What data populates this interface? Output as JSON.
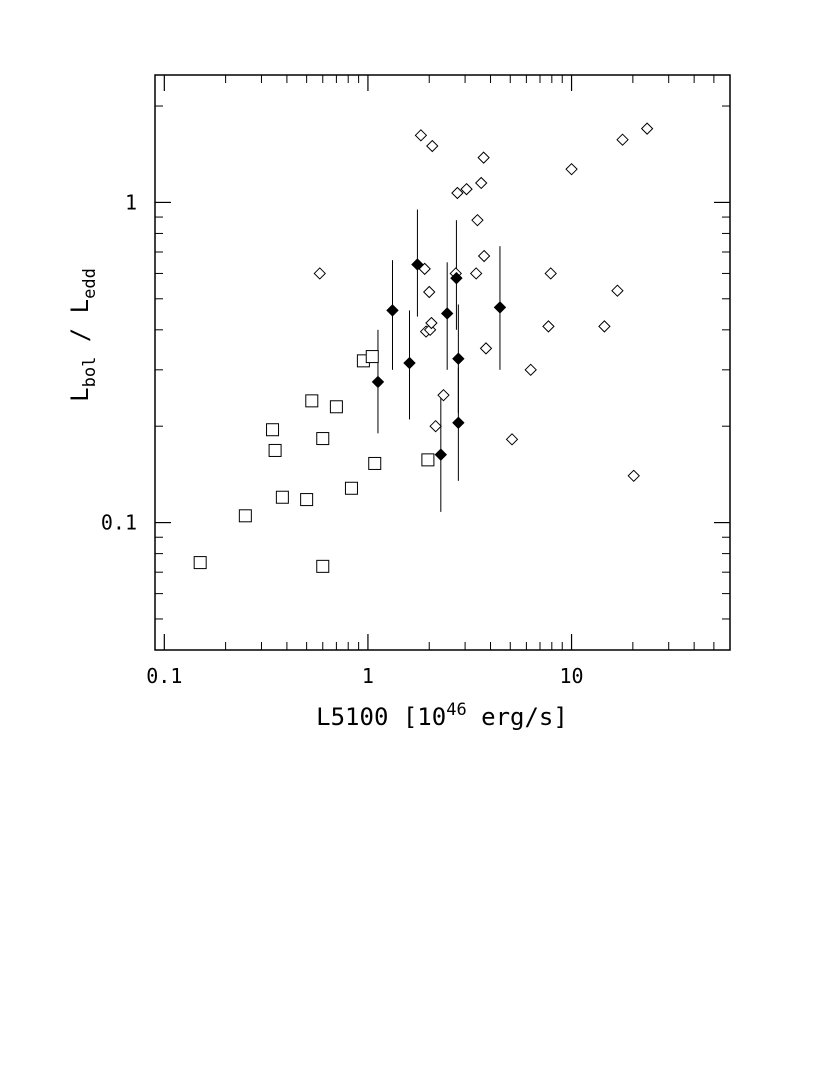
{
  "chart_data": {
    "type": "scatter",
    "title": "",
    "xlabel_main": "L5100 [10",
    "xlabel_sup": "46",
    "xlabel_tail": " erg/s]",
    "ylabel_l1": "L",
    "ylabel_sub1": "bol",
    "ylabel_mid": " / L",
    "ylabel_sub2": "edd",
    "xscale": "log",
    "yscale": "log",
    "xlim": [
      0.09,
      60
    ],
    "ylim": [
      0.04,
      2.5
    ],
    "xticks": [
      {
        "value": 0.1,
        "label": "0.1"
      },
      {
        "value": 1,
        "label": "1"
      },
      {
        "value": 10,
        "label": "10"
      }
    ],
    "yticks": [
      {
        "value": 0.1,
        "label": "0.1"
      },
      {
        "value": 1,
        "label": "1"
      }
    ],
    "grid": false,
    "legend": "none",
    "series": [
      {
        "marker": "open-square",
        "points": [
          [
            0.15,
            0.075
          ],
          [
            0.25,
            0.105
          ],
          [
            0.34,
            0.195
          ],
          [
            0.35,
            0.168
          ],
          [
            0.38,
            0.12
          ],
          [
            0.5,
            0.118
          ],
          [
            0.53,
            0.24
          ],
          [
            0.6,
            0.183
          ],
          [
            0.6,
            0.073
          ],
          [
            0.7,
            0.23
          ],
          [
            0.83,
            0.128
          ],
          [
            0.95,
            0.32
          ],
          [
            1.05,
            0.33
          ],
          [
            1.08,
            0.153
          ],
          [
            1.97,
            0.157
          ]
        ]
      },
      {
        "marker": "open-diamond",
        "points": [
          [
            0.58,
            0.6
          ],
          [
            1.82,
            1.62
          ],
          [
            1.9,
            0.62
          ],
          [
            1.93,
            0.395
          ],
          [
            2.0,
            0.525
          ],
          [
            2.02,
            0.4
          ],
          [
            2.05,
            0.42
          ],
          [
            2.07,
            1.5
          ],
          [
            2.15,
            0.2
          ],
          [
            2.35,
            0.25
          ],
          [
            2.7,
            0.6
          ],
          [
            2.75,
            1.07
          ],
          [
            3.05,
            1.1
          ],
          [
            3.4,
            0.6
          ],
          [
            3.45,
            0.88
          ],
          [
            3.6,
            1.15
          ],
          [
            3.7,
            1.38
          ],
          [
            3.72,
            0.68
          ],
          [
            3.8,
            0.35
          ],
          [
            5.1,
            0.182
          ],
          [
            6.3,
            0.3
          ],
          [
            7.7,
            0.41
          ],
          [
            7.9,
            0.6
          ],
          [
            10.0,
            1.27
          ],
          [
            14.5,
            0.41
          ],
          [
            16.8,
            0.53
          ],
          [
            17.8,
            1.57
          ],
          [
            20.2,
            0.14
          ],
          [
            23.5,
            1.7
          ]
        ]
      },
      {
        "marker": "filled-diamond",
        "errorbars": true,
        "points": [
          {
            "x": 1.12,
            "y": 0.275,
            "ylo": 0.19,
            "yhi": 0.4
          },
          {
            "x": 1.32,
            "y": 0.46,
            "ylo": 0.3,
            "yhi": 0.66
          },
          {
            "x": 1.6,
            "y": 0.315,
            "ylo": 0.21,
            "yhi": 0.46
          },
          {
            "x": 1.75,
            "y": 0.64,
            "ylo": 0.44,
            "yhi": 0.95
          },
          {
            "x": 2.28,
            "y": 0.163,
            "ylo": 0.108,
            "yhi": 0.245
          },
          {
            "x": 2.45,
            "y": 0.45,
            "ylo": 0.3,
            "yhi": 0.65
          },
          {
            "x": 2.72,
            "y": 0.58,
            "ylo": 0.4,
            "yhi": 0.88
          },
          {
            "x": 2.78,
            "y": 0.325,
            "ylo": 0.22,
            "yhi": 0.48
          },
          {
            "x": 2.78,
            "y": 0.205,
            "ylo": 0.135,
            "yhi": 0.305
          },
          {
            "x": 4.45,
            "y": 0.47,
            "ylo": 0.3,
            "yhi": 0.73
          }
        ]
      }
    ]
  }
}
